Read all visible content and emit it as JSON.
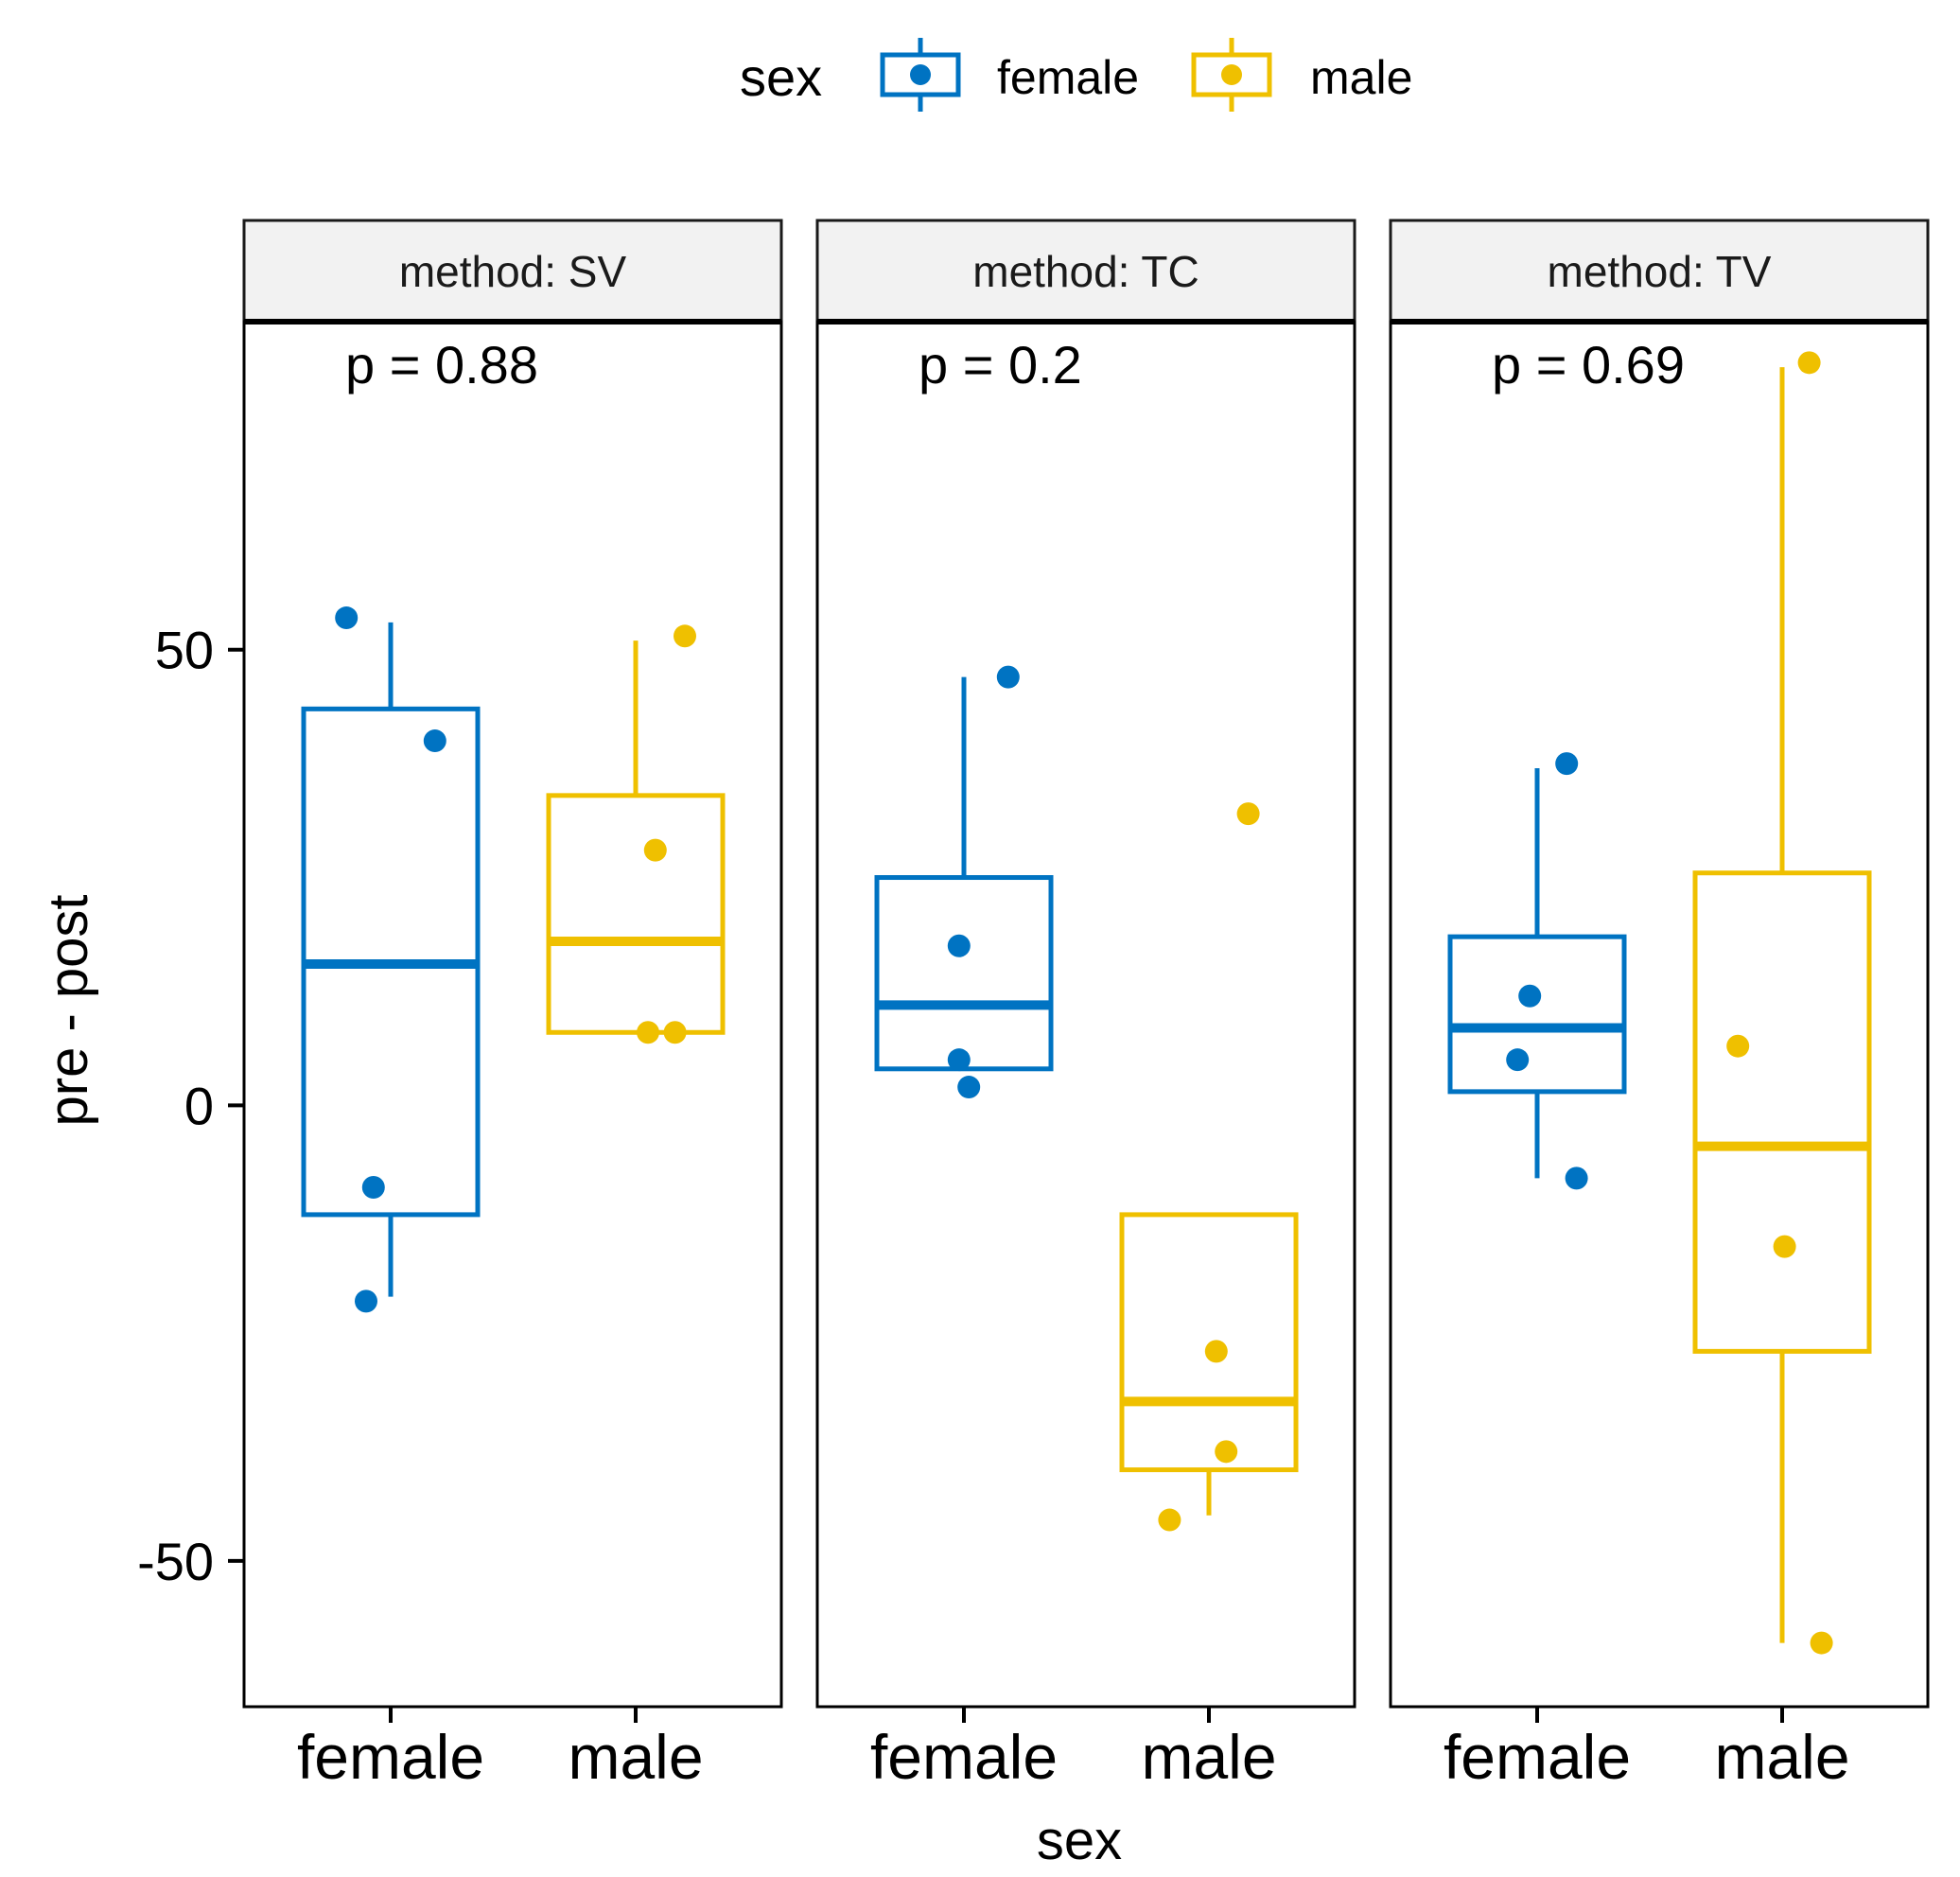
{
  "chart_data": {
    "type": "boxplot",
    "xlabel": "sex",
    "ylabel": "pre - post",
    "ylim": [
      -66,
      86
    ],
    "y_ticks": [
      50,
      0,
      -50
    ],
    "y_tick_labels": [
      "50",
      "0",
      "-50"
    ],
    "categories": [
      "female",
      "male"
    ],
    "legend": {
      "title": "sex",
      "position": "top",
      "entries": [
        {
          "label": "female",
          "color": "#0073C2"
        },
        {
          "label": "male",
          "color": "#EFC000"
        }
      ]
    },
    "facets": [
      {
        "strip_label": "method: SV",
        "p_label": "p = 0.88",
        "boxes": [
          {
            "group": "female",
            "whisker_low": -21,
            "q1": -12,
            "median": 15.5,
            "q3": 43.5,
            "whisker_high": 53,
            "points": [
              {
                "x_offset": -0.18,
                "y": 53.5
              },
              {
                "x_offset": 0.18,
                "y": 40
              },
              {
                "x_offset": -0.07,
                "y": -9
              },
              {
                "x_offset": -0.1,
                "y": -21.5
              }
            ]
          },
          {
            "group": "male",
            "whisker_low": 8,
            "q1": 8,
            "median": 18,
            "q3": 34,
            "whisker_high": 51,
            "points": [
              {
                "x_offset": 0.2,
                "y": 51.5
              },
              {
                "x_offset": 0.08,
                "y": 28
              },
              {
                "x_offset": 0.05,
                "y": 8
              },
              {
                "x_offset": 0.16,
                "y": 8
              }
            ]
          }
        ]
      },
      {
        "strip_label": "method: TC",
        "p_label": "p = 0.2",
        "boxes": [
          {
            "group": "female",
            "whisker_low": 4,
            "q1": 4,
            "median": 11,
            "q3": 25,
            "whisker_high": 47,
            "points": [
              {
                "x_offset": 0.18,
                "y": 47
              },
              {
                "x_offset": -0.02,
                "y": 17.5
              },
              {
                "x_offset": -0.02,
                "y": 5
              },
              {
                "x_offset": 0.02,
                "y": 2
              }
            ]
          },
          {
            "group": "male",
            "whisker_low": -45,
            "q1": -40,
            "median": -32.5,
            "q3": -12,
            "whisker_high": -12,
            "points": [
              {
                "x_offset": 0.16,
                "y": 32
              },
              {
                "x_offset": 0.03,
                "y": -27
              },
              {
                "x_offset": 0.07,
                "y": -38
              },
              {
                "x_offset": -0.16,
                "y": -45.5
              }
            ]
          }
        ]
      },
      {
        "strip_label": "method: TV",
        "p_label": "p = 0.69",
        "boxes": [
          {
            "group": "female",
            "whisker_low": -8,
            "q1": 1.5,
            "median": 8.5,
            "q3": 18.5,
            "whisker_high": 37,
            "points": [
              {
                "x_offset": 0.12,
                "y": 37.5
              },
              {
                "x_offset": -0.03,
                "y": 12
              },
              {
                "x_offset": -0.08,
                "y": 5
              },
              {
                "x_offset": 0.16,
                "y": -8
              }
            ]
          },
          {
            "group": "male",
            "whisker_low": -59,
            "q1": -27,
            "median": -4.5,
            "q3": 25.5,
            "whisker_high": 81,
            "points": [
              {
                "x_offset": 0.11,
                "y": 81.5
              },
              {
                "x_offset": -0.18,
                "y": 6.5
              },
              {
                "x_offset": 0.01,
                "y": -15.5
              },
              {
                "x_offset": 0.16,
                "y": -59
              }
            ]
          }
        ]
      }
    ]
  }
}
